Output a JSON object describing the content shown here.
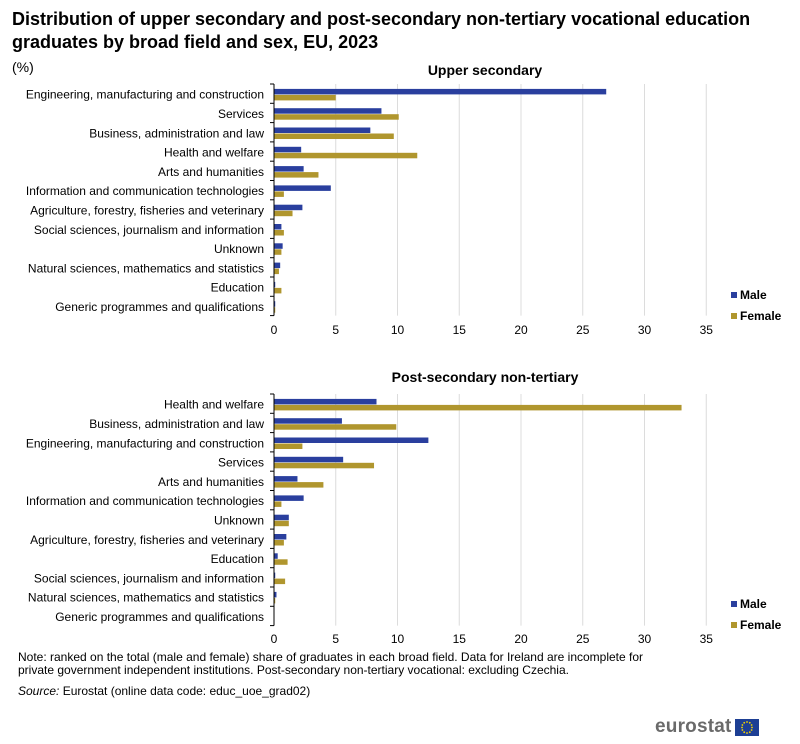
{
  "title": "Distribution of upper secondary and post-secondary non-tertiary vocational education graduates by broad field and sex, EU, 2023",
  "unit": "(%)",
  "note": "Note: ranked on the total (male and female) share of graduates in each broad field. Data for Ireland are incomplete for private government independent institutions. Post-secondary non-tertiary vocational: excluding Czechia.",
  "source_label": "Source:",
  "source_text": " Eurostat (online data code: educ_uoe_grad02)",
  "logo_text": "eurostat",
  "colors": {
    "male": "#2a3f9e",
    "female": "#b0962e",
    "grid": "#dcdcdc"
  },
  "chart_data": [
    {
      "type": "bar",
      "orientation": "horizontal",
      "title": "Upper secondary",
      "categories": [
        "Engineering, manufacturing and construction",
        "Services",
        "Business, administration and law",
        "Health and welfare",
        "Arts and humanities",
        "Information and communication technologies",
        "Agriculture, forestry, fisheries and veterinary",
        "Social sciences, journalism and information",
        "Unknown",
        "Natural sciences, mathematics and statistics",
        "Education",
        "Generic programmes and qualifications"
      ],
      "series": [
        {
          "name": "Male",
          "values": [
            26.9,
            8.7,
            7.8,
            2.2,
            2.4,
            4.6,
            2.3,
            0.6,
            0.7,
            0.5,
            0.1,
            0.1
          ]
        },
        {
          "name": "Female",
          "values": [
            5.0,
            10.1,
            9.7,
            11.6,
            3.6,
            0.8,
            1.5,
            0.8,
            0.6,
            0.4,
            0.6,
            0.1
          ]
        }
      ],
      "xlim": [
        0,
        35
      ],
      "xticks": [
        0,
        5,
        10,
        15,
        20,
        25,
        30,
        35
      ],
      "grid": true,
      "legend": "right"
    },
    {
      "type": "bar",
      "orientation": "horizontal",
      "title": "Post-secondary non-tertiary",
      "categories": [
        "Health and welfare",
        "Business, administration and law",
        "Engineering, manufacturing and construction",
        "Services",
        "Arts and humanities",
        "Information and communication technologies",
        "Unknown",
        "Agriculture, forestry, fisheries and veterinary",
        "Education",
        "Social sciences, journalism and information",
        "Natural sciences, mathematics and statistics",
        "Generic programmes and qualifications"
      ],
      "series": [
        {
          "name": "Male",
          "values": [
            8.3,
            5.5,
            12.5,
            5.6,
            1.9,
            2.4,
            1.2,
            1.0,
            0.3,
            0.1,
            0.2,
            0.0
          ]
        },
        {
          "name": "Female",
          "values": [
            33.0,
            9.9,
            2.3,
            8.1,
            4.0,
            0.6,
            1.2,
            0.8,
            1.1,
            0.9,
            0.1,
            0.0
          ]
        }
      ],
      "xlim": [
        0,
        35
      ],
      "xticks": [
        0,
        5,
        10,
        15,
        20,
        25,
        30,
        35
      ],
      "grid": true,
      "legend": "right"
    }
  ]
}
